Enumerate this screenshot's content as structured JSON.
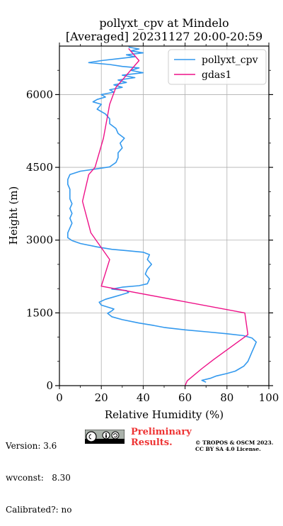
{
  "chart_data": {
    "type": "line",
    "title": "pollyxt_cpv at Mindelo",
    "subtitle": "[Averaged] 20231127 20:00-20:59",
    "xlabel": "Relative Humidity (%)",
    "ylabel": "Height (m)",
    "xlim": [
      0,
      100
    ],
    "ylim": [
      0,
      7000
    ],
    "xticks": [
      "0",
      "20",
      "40",
      "60",
      "80",
      "100"
    ],
    "yticks": [
      "0",
      "1500",
      "3000",
      "4500",
      "6000"
    ],
    "grid": true,
    "legend": "top-right",
    "series": [
      {
        "name": "pollyxt_cpv",
        "color": "#3399ee",
        "points": [
          [
            70,
            70
          ],
          [
            68,
            110
          ],
          [
            72,
            150
          ],
          [
            75,
            200
          ],
          [
            80,
            250
          ],
          [
            84,
            300
          ],
          [
            86,
            350
          ],
          [
            88,
            400
          ],
          [
            90,
            500
          ],
          [
            91,
            600
          ],
          [
            92,
            700
          ],
          [
            93,
            800
          ],
          [
            94,
            900
          ],
          [
            92,
            980
          ],
          [
            88,
            1030
          ],
          [
            80,
            1070
          ],
          [
            70,
            1110
          ],
          [
            60,
            1150
          ],
          [
            50,
            1200
          ],
          [
            45,
            1240
          ],
          [
            38,
            1290
          ],
          [
            30,
            1360
          ],
          [
            25,
            1420
          ],
          [
            23,
            1490
          ],
          [
            25,
            1540
          ],
          [
            26,
            1580
          ],
          [
            23,
            1620
          ],
          [
            20,
            1660
          ],
          [
            19,
            1720
          ],
          [
            22,
            1780
          ],
          [
            26,
            1830
          ],
          [
            30,
            1880
          ],
          [
            33,
            1920
          ],
          [
            32,
            1960
          ],
          [
            25,
            1990
          ],
          [
            30,
            2030
          ],
          [
            38,
            2060
          ],
          [
            42,
            2100
          ],
          [
            43,
            2200
          ],
          [
            41,
            2300
          ],
          [
            42,
            2400
          ],
          [
            44,
            2500
          ],
          [
            42,
            2600
          ],
          [
            43,
            2700
          ],
          [
            40,
            2750
          ],
          [
            33,
            2780
          ],
          [
            25,
            2810
          ],
          [
            18,
            2860
          ],
          [
            10,
            2930
          ],
          [
            6,
            2990
          ],
          [
            4,
            3050
          ],
          [
            4,
            3150
          ],
          [
            5,
            3250
          ],
          [
            6,
            3350
          ],
          [
            5,
            3450
          ],
          [
            6,
            3550
          ],
          [
            5,
            3650
          ],
          [
            6,
            3750
          ],
          [
            5,
            3850
          ],
          [
            5,
            3950
          ],
          [
            5,
            4050
          ],
          [
            4,
            4150
          ],
          [
            4,
            4250
          ],
          [
            5,
            4350
          ],
          [
            10,
            4420
          ],
          [
            18,
            4470
          ],
          [
            24,
            4510
          ],
          [
            27,
            4600
          ],
          [
            28,
            4700
          ],
          [
            28,
            4800
          ],
          [
            30,
            4900
          ],
          [
            29,
            5000
          ],
          [
            31,
            5100
          ],
          [
            28,
            5200
          ],
          [
            27,
            5300
          ],
          [
            24,
            5400
          ],
          [
            24,
            5500
          ],
          [
            22,
            5600
          ],
          [
            18,
            5700
          ],
          [
            20,
            5800
          ],
          [
            16,
            5850
          ],
          [
            18,
            5900
          ],
          [
            22,
            5950
          ],
          [
            20,
            6000
          ],
          [
            26,
            6050
          ],
          [
            24,
            6100
          ],
          [
            30,
            6150
          ],
          [
            26,
            6200
          ],
          [
            32,
            6250
          ],
          [
            28,
            6300
          ],
          [
            36,
            6350
          ],
          [
            30,
            6400
          ],
          [
            40,
            6450
          ],
          [
            34,
            6500
          ],
          [
            38,
            6550
          ],
          [
            30,
            6580
          ],
          [
            24,
            6620
          ],
          [
            14,
            6660
          ],
          [
            20,
            6700
          ],
          [
            28,
            6740
          ],
          [
            36,
            6780
          ],
          [
            32,
            6820
          ],
          [
            40,
            6860
          ],
          [
            34,
            6900
          ],
          [
            38,
            6940
          ],
          [
            33,
            6980
          ]
        ]
      },
      {
        "name": "gdas1",
        "color": "#ee1188",
        "points": [
          [
            60,
            0
          ],
          [
            61,
            100
          ],
          [
            68,
            350
          ],
          [
            74,
            550
          ],
          [
            90,
            1050
          ],
          [
            88.5,
            1500
          ],
          [
            20,
            2050
          ],
          [
            24,
            2600
          ],
          [
            15,
            3150
          ],
          [
            11,
            3800
          ],
          [
            14,
            4350
          ],
          [
            17,
            4500
          ],
          [
            21,
            5100
          ],
          [
            24,
            5800
          ],
          [
            27,
            6150
          ],
          [
            32,
            6400
          ],
          [
            38,
            6700
          ],
          [
            33,
            6950
          ]
        ]
      }
    ]
  },
  "footer": {
    "version": "Version: 3.6",
    "wvconst": "wvconst:   8.30",
    "calibrated": "Calibrated?: no",
    "prelim_line1": "Preliminary",
    "prelim_line2": "Results.",
    "prelim_color": "#ee3333",
    "copyright_line1": "© TROPOS & OSCM 2023.",
    "copyright_line2": "CC BY SA 4.0 License."
  }
}
